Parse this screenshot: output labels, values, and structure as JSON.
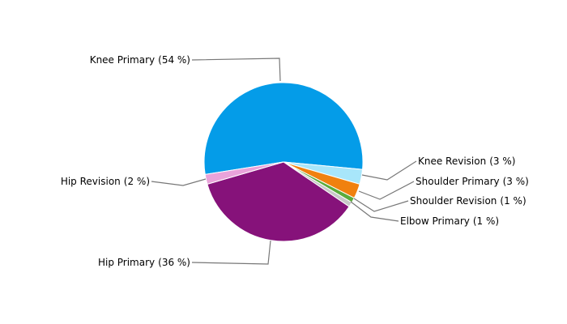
{
  "chart_data": {
    "type": "pie",
    "categories": [
      "Knee Primary",
      "Knee Revision",
      "Shoulder Primary",
      "Shoulder Revision",
      "Elbow Primary",
      "Hip Primary",
      "Hip Revision"
    ],
    "values": [
      54,
      3,
      3,
      1,
      1,
      36,
      2
    ],
    "value_labels": [
      "(54 %)",
      "(3 %)",
      "(3 %)",
      "(1 %)",
      "(1 %)",
      "(36 %)",
      "(2 %)"
    ],
    "colors": [
      "#049ce8",
      "#a8e6fa",
      "#f0810f",
      "#5bab3c",
      "#c8c8c8",
      "#86127a",
      "#e9a3da"
    ]
  }
}
